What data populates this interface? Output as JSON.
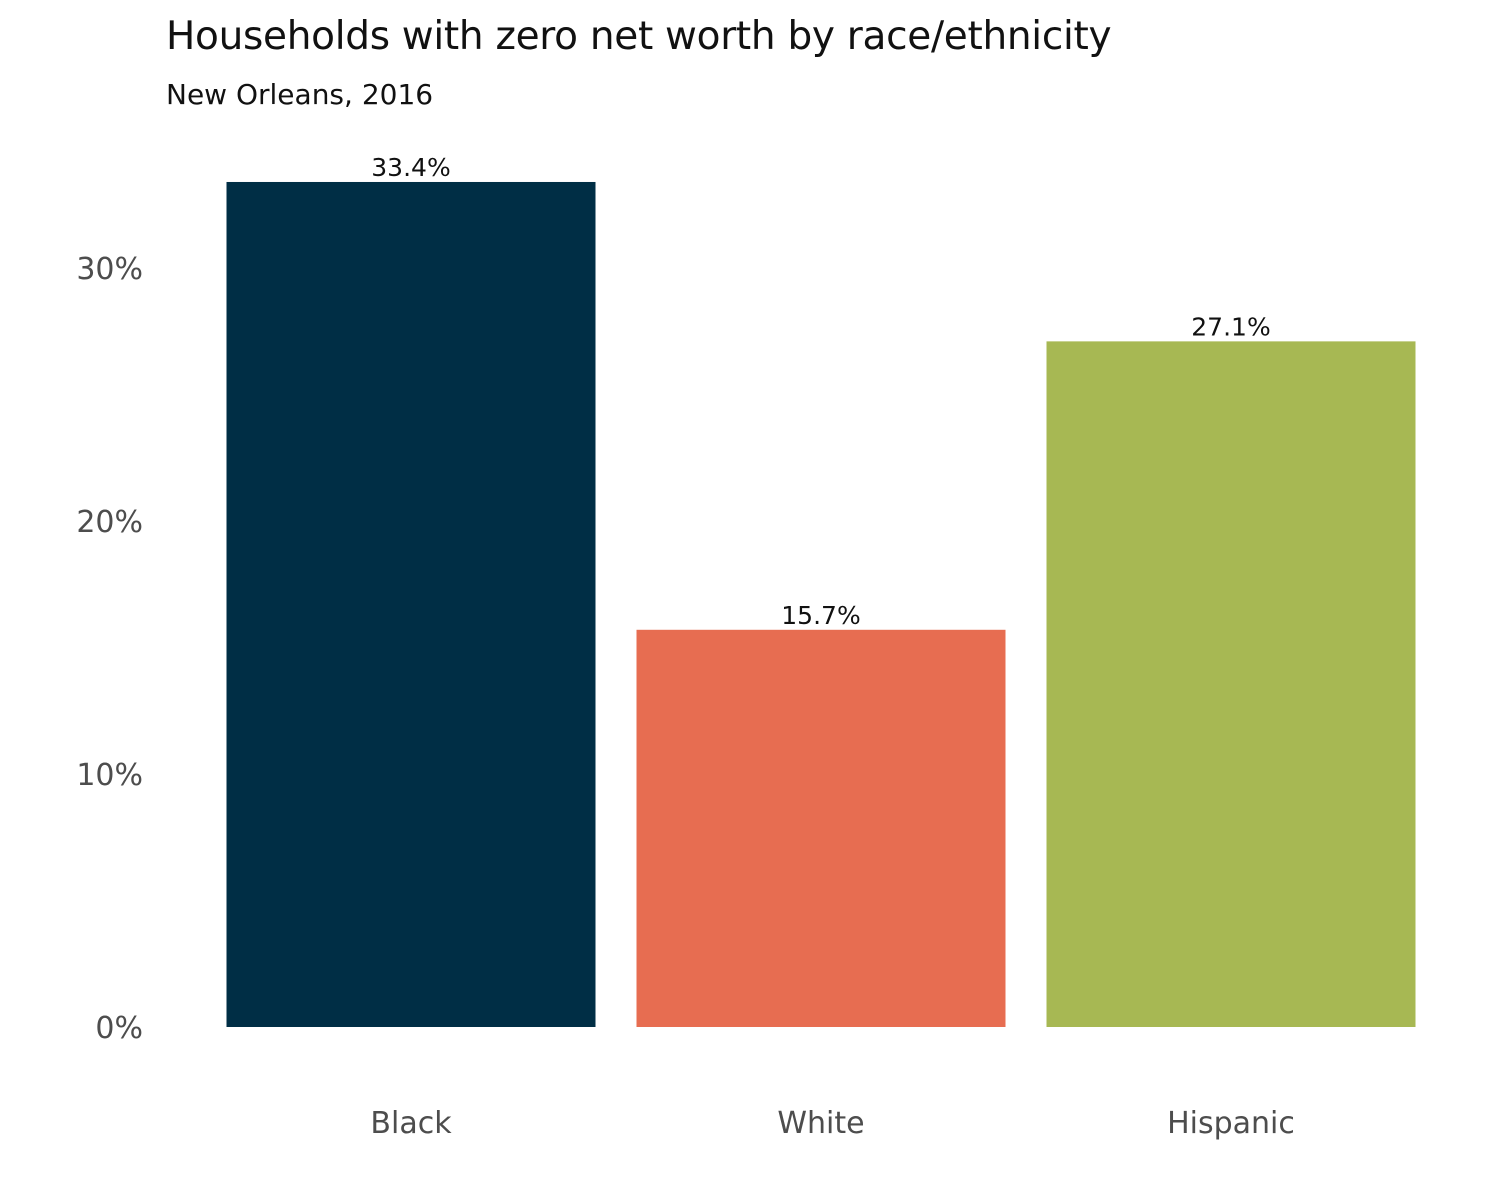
{
  "chart_data": {
    "type": "bar",
    "title": "Households with zero net worth by race/ethnicity",
    "subtitle": "New Orleans, 2016",
    "xlabel": "",
    "ylabel": "",
    "categories": [
      "Black",
      "White",
      "Hispanic"
    ],
    "values": [
      33.4,
      15.7,
      27.1
    ],
    "data_labels": [
      "33.4%",
      "15.7%",
      "27.1%"
    ],
    "colors": [
      "#002e45",
      "#e76d51",
      "#a7b853"
    ],
    "ylim": [
      0,
      34
    ],
    "yticks": [
      0,
      10,
      20,
      30
    ],
    "ytick_labels": [
      "0%",
      "10%",
      "20%",
      "30%"
    ],
    "grid": false,
    "legend": "none"
  }
}
